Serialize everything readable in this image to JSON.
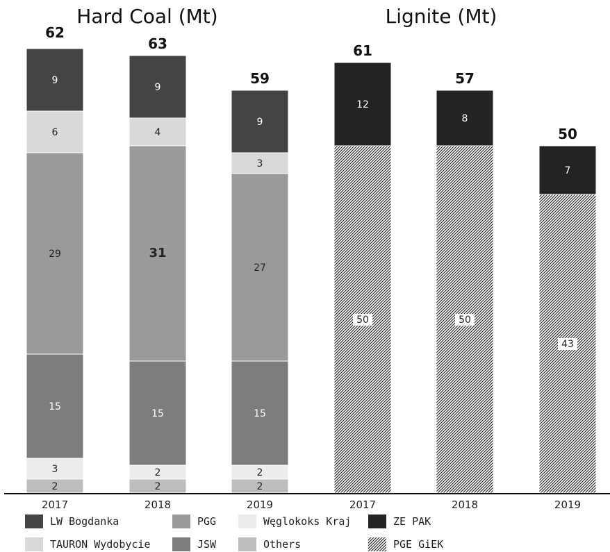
{
  "chart_data": {
    "type": "bar",
    "stacked": true,
    "groups": [
      {
        "title": "Hard Coal (Mt)",
        "categories": [
          "2017",
          "2018",
          "2019"
        ],
        "totals": [
          62,
          63,
          59
        ],
        "series": [
          {
            "name": "Others",
            "values": [
              2,
              2,
              2
            ],
            "color": "#bdbdbd"
          },
          {
            "name": "Węglokoks Kraj",
            "values": [
              3,
              2,
              2
            ],
            "color": "#ececec"
          },
          {
            "name": "JSW",
            "values": [
              15,
              15,
              15
            ],
            "color": "#7d7d7d"
          },
          {
            "name": "PGG",
            "values": [
              29,
              31,
              27
            ],
            "color": "#9a9a9a"
          },
          {
            "name": "TAURON Wydobycie",
            "values": [
              6,
              4,
              3
            ],
            "color": "#d9d9d9"
          },
          {
            "name": "LW Bogdanka",
            "values": [
              9,
              9,
              9
            ],
            "color": "#444444"
          }
        ]
      },
      {
        "title": "Lignite (Mt)",
        "categories": [
          "2017",
          "2018",
          "2019"
        ],
        "totals": [
          61,
          57,
          50
        ],
        "series": [
          {
            "name": "PGE GiEK",
            "values": [
              50,
              50,
              43
            ],
            "color": "pattern"
          },
          {
            "name": "ZE PAK",
            "values": [
              12,
              8,
              7
            ],
            "color": "#232323"
          }
        ]
      }
    ],
    "bold_labels": [
      {
        "group": 0,
        "category": "2018",
        "series": "PGG"
      }
    ],
    "legend_position": "bottom",
    "grid": false
  },
  "legend": [
    {
      "label": "LW Bogdanka",
      "color": "#444444"
    },
    {
      "label": "PGG",
      "color": "#9a9a9a"
    },
    {
      "label": "Węglokoks Kraj",
      "color": "#ececec"
    },
    {
      "label": "ZE PAK",
      "color": "#232323"
    },
    {
      "label": "TAURON Wydobycie",
      "color": "#d9d9d9"
    },
    {
      "label": "JSW",
      "color": "#7d7d7d"
    },
    {
      "label": "Others",
      "color": "#bdbdbd"
    },
    {
      "label": "PGE GiEK",
      "color": "pattern"
    }
  ]
}
